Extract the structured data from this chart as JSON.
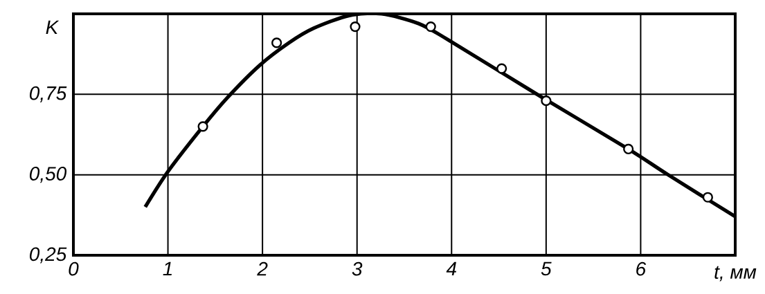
{
  "chart_data": {
    "type": "line",
    "xlabel": "t, мм",
    "ylabel": "K",
    "xlim": [
      0,
      7
    ],
    "ylim": [
      0.25,
      1.0
    ],
    "xticks": [
      0,
      1,
      2,
      3,
      4,
      5,
      6
    ],
    "yticks": [
      {
        "value": 0.25,
        "label": "0,25"
      },
      {
        "value": 0.5,
        "label": "0,50"
      },
      {
        "value": 0.75,
        "label": "0,75"
      }
    ],
    "grid": true,
    "series": [
      {
        "color": "#000000",
        "marker": "none",
        "x": [
          0.76,
          1.0,
          1.37,
          1.63,
          1.97,
          2.28,
          2.54,
          2.92,
          3.26,
          3.65,
          3.96,
          4.96,
          5.87,
          6.29,
          7.0
        ],
        "values": [
          0.4,
          0.51,
          0.65,
          0.74,
          0.84,
          0.91,
          0.955,
          0.995,
          1.0,
          0.97,
          0.92,
          0.74,
          0.58,
          0.5,
          0.37
        ]
      },
      {
        "type": "scatter",
        "color": "#000000",
        "marker": "circle",
        "x": [
          1.37,
          2.15,
          2.98,
          3.78,
          4.53,
          5.0,
          5.87,
          6.71
        ],
        "values": [
          0.65,
          0.91,
          0.96,
          0.96,
          0.83,
          0.73,
          0.58,
          0.43
        ]
      }
    ]
  }
}
